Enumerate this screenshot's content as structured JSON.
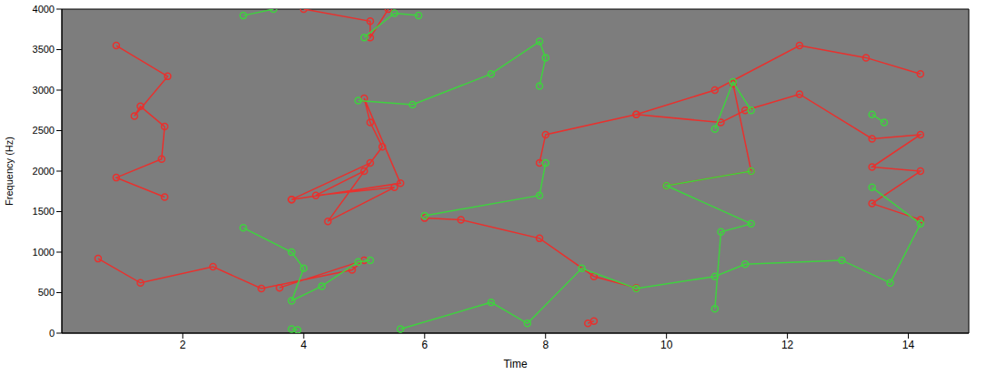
{
  "chart_data": {
    "type": "scatter",
    "xlabel": "Time",
    "ylabel": "Frequency (Hz)",
    "xlim": [
      0,
      15
    ],
    "ylim": [
      0,
      4000
    ],
    "xticks": [
      2,
      4,
      6,
      8,
      10,
      12,
      14
    ],
    "yticks": [
      0,
      500,
      1000,
      1500,
      2000,
      2500,
      3000,
      3500,
      4000
    ],
    "grid": false,
    "marker": "circle",
    "line_style": "solid",
    "series": [
      {
        "color": "#e8312e",
        "x": [
          0.9,
          1.75,
          1.2,
          1.3,
          1.7,
          1.65,
          0.9,
          1.7
        ],
        "y": [
          3550,
          3170,
          2680,
          2800,
          2550,
          2150,
          1920,
          1680
        ]
      },
      {
        "color": "#e8312e",
        "x": [
          0.6,
          1.3,
          2.5,
          3.3,
          4.8,
          5.0,
          3.6
        ],
        "y": [
          920,
          620,
          820,
          550,
          780,
          900,
          560
        ]
      },
      {
        "color": "#e8312e",
        "x": [
          3.8,
          5.1,
          4.4,
          5.5,
          4.2,
          5.0,
          5.3,
          5.1,
          5.0,
          5.6,
          3.8
        ],
        "y": [
          1650,
          2100,
          1380,
          1800,
          1700,
          2000,
          2300,
          2600,
          2900,
          1850,
          1650
        ]
      },
      {
        "color": "#e8312e",
        "x": [
          4.0,
          5.1,
          5.1,
          5.4
        ],
        "y": [
          4000,
          3850,
          3650,
          4000
        ]
      },
      {
        "color": "#e8312e",
        "x": [
          6.0,
          6.6,
          7.9,
          8.8,
          9.5
        ],
        "y": [
          1420,
          1400,
          1170,
          700,
          560
        ]
      },
      {
        "color": "#e8312e",
        "x": [
          7.9,
          8.0,
          9.5,
          10.8,
          12.2,
          13.3,
          14.2
        ],
        "y": [
          2100,
          2450,
          2700,
          3000,
          3550,
          3400,
          3200
        ]
      },
      {
        "color": "#e8312e",
        "x": [
          9.5,
          10.9,
          11.3,
          12.2,
          13.4,
          14.2,
          13.4,
          14.2,
          13.4,
          14.2
        ],
        "y": [
          2700,
          2600,
          2750,
          2950,
          2400,
          2450,
          2050,
          2000,
          1600,
          1400
        ]
      },
      {
        "color": "#e8312e",
        "x": [
          10.0,
          11.4,
          11.1
        ],
        "y": [
          1820,
          2000,
          3080
        ]
      },
      {
        "color": "#e8312e",
        "x": [
          8.8,
          8.7
        ],
        "y": [
          150,
          120
        ]
      },
      {
        "color": "#3fd23f",
        "x": [
          3.0,
          3.5
        ],
        "y": [
          3920,
          4000
        ]
      },
      {
        "color": "#3fd23f",
        "x": [
          5.0,
          5.5,
          5.9
        ],
        "y": [
          3650,
          3950,
          3920
        ]
      },
      {
        "color": "#3fd23f",
        "x": [
          4.9,
          5.8,
          7.1,
          7.9,
          8.0,
          7.9
        ],
        "y": [
          2870,
          2820,
          3200,
          3600,
          3400,
          3050
        ]
      },
      {
        "color": "#3fd23f",
        "x": [
          6.0,
          7.9,
          8.0
        ],
        "y": [
          1450,
          1700,
          2100
        ]
      },
      {
        "color": "#3fd23f",
        "x": [
          3.0,
          3.8,
          4.0,
          3.8,
          4.3,
          4.9,
          5.1
        ],
        "y": [
          1300,
          1000,
          800,
          400,
          580,
          880,
          900
        ]
      },
      {
        "color": "#3fd23f",
        "x": [
          3.8,
          3.9
        ],
        "y": [
          50,
          40
        ]
      },
      {
        "color": "#3fd23f",
        "x": [
          5.6,
          7.1,
          7.7,
          8.6,
          9.5,
          10.8,
          11.3,
          12.9,
          13.7,
          14.2,
          13.4
        ],
        "y": [
          50,
          380,
          120,
          800,
          550,
          700,
          850,
          900,
          620,
          1350,
          1800
        ]
      },
      {
        "color": "#3fd23f",
        "x": [
          10.8,
          10.9,
          11.4,
          10.0,
          11.4
        ],
        "y": [
          300,
          1250,
          1350,
          1820,
          2000
        ]
      },
      {
        "color": "#3fd23f",
        "x": [
          10.8,
          11.1,
          11.4
        ],
        "y": [
          2520,
          3100,
          2750
        ]
      },
      {
        "color": "#3fd23f",
        "x": [
          13.4,
          13.6
        ],
        "y": [
          2700,
          2600
        ]
      }
    ]
  }
}
